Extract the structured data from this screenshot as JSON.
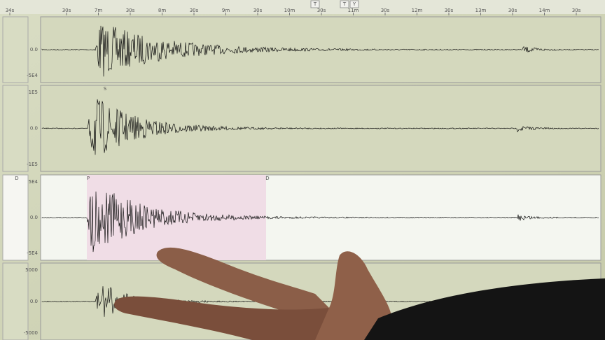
{
  "toolbar": {
    "buttons": [
      "T",
      "T",
      "Y"
    ]
  },
  "time_axis": {
    "labels": [
      "34s",
      "30s",
      "7m",
      "30s",
      "8m",
      "30s",
      "9m",
      "30s",
      "10m",
      "30s",
      "11m",
      "30s",
      "12m",
      "30s",
      "13m",
      "30s",
      "14m",
      "30s"
    ]
  },
  "traces": [
    {
      "scale_labels": [
        "0.0",
        "-5E4"
      ],
      "phases": []
    },
    {
      "scale_labels": [
        "1E5",
        "0.0",
        "-1E5"
      ],
      "phases": [
        "S"
      ]
    },
    {
      "scale_labels": [
        "5E4",
        "0.0",
        "-5E4"
      ],
      "phases": [
        "P",
        "D",
        "D"
      ]
    },
    {
      "scale_labels": [
        "5000",
        "0.0",
        "-5000"
      ],
      "phases": []
    }
  ]
}
